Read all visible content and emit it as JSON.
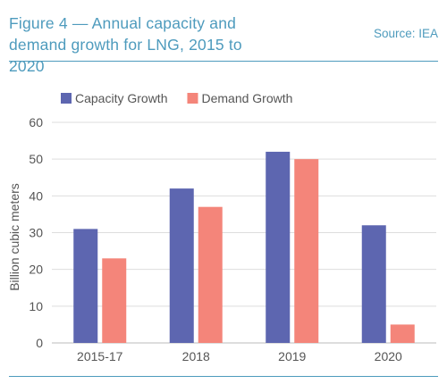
{
  "header": {
    "title_line1": "Figure 4 — Annual capacity and",
    "title_line2": "demand growth for LNG, 2015 to 2020",
    "source": "Source: IEA"
  },
  "chart_data": {
    "type": "bar",
    "categories": [
      "2015-17",
      "2018",
      "2019",
      "2020"
    ],
    "series": [
      {
        "name": "Capacity Growth",
        "values": [
          31,
          42,
          52,
          32
        ],
        "color": "#5d66b0"
      },
      {
        "name": "Demand Growth",
        "values": [
          23,
          37,
          50,
          5
        ],
        "color": "#f4857a"
      }
    ],
    "ylabel": "Billion cubic meters",
    "ylim": [
      0,
      60
    ],
    "yticks": [
      "0",
      "10",
      "20",
      "30",
      "40",
      "50",
      "60"
    ],
    "grid": true,
    "legend": "top-left",
    "colors": {
      "text": "#4e9bbd",
      "axis_text": "#555555",
      "grid": "#dddddd"
    }
  }
}
